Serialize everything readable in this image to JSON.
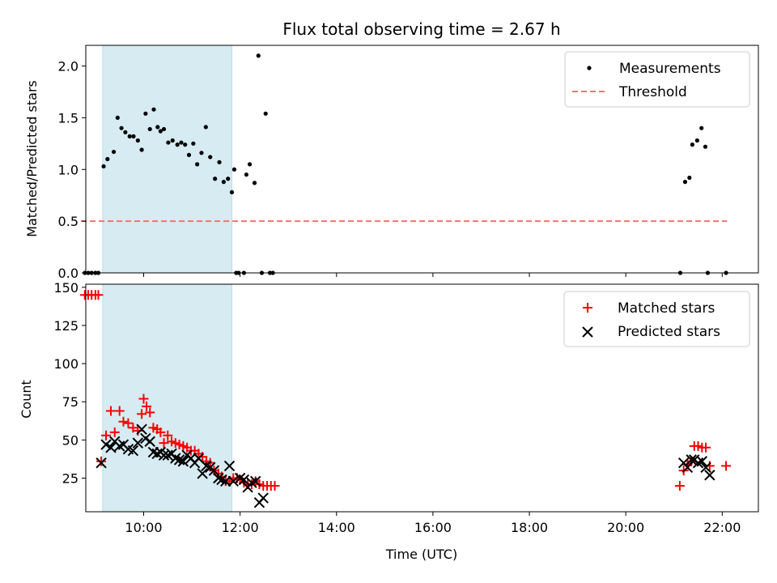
{
  "chart_data": [
    {
      "type": "scatter",
      "title": "Flux total observing time = 2.67 h",
      "ylabel": "Matched/Predicted stars",
      "ylim": [
        0,
        2.2
      ],
      "yticks": [
        "0.0",
        "0.5",
        "1.0",
        "1.5",
        "2.0"
      ],
      "xlim_hours": [
        8.8,
        22.75
      ],
      "shaded_interval_hours": [
        9.15,
        11.83
      ],
      "legend_position": "upper right",
      "series": [
        {
          "name": "Measurements",
          "marker": "dot",
          "color": "#000000",
          "x": [
            8.78,
            8.85,
            8.92,
            9.0,
            9.06,
            9.17,
            9.25,
            9.38,
            9.46,
            9.54,
            9.62,
            9.71,
            9.79,
            9.88,
            9.96,
            10.04,
            10.13,
            10.21,
            10.29,
            10.35,
            10.42,
            10.51,
            10.6,
            10.7,
            10.78,
            10.86,
            10.94,
            11.03,
            11.11,
            11.2,
            11.29,
            11.38,
            11.48,
            11.57,
            11.66,
            11.75,
            11.83,
            11.88,
            11.92,
            11.97,
            12.08,
            12.13,
            12.2,
            12.3,
            12.38,
            12.45,
            12.53,
            12.62,
            12.68,
            21.13,
            21.23,
            21.32,
            21.38,
            21.48,
            21.57,
            21.65,
            21.7,
            22.08
          ],
          "y": [
            0,
            0,
            0,
            0,
            0,
            1.03,
            1.1,
            1.17,
            1.5,
            1.4,
            1.36,
            1.32,
            1.32,
            1.28,
            1.19,
            1.54,
            1.39,
            1.58,
            1.41,
            1.37,
            1.39,
            1.26,
            1.28,
            1.24,
            1.26,
            1.24,
            1.14,
            1.25,
            1.05,
            1.16,
            1.41,
            1.12,
            0.91,
            1.07,
            0.88,
            0.91,
            0.78,
            1.0,
            0,
            0,
            0,
            0.95,
            1.05,
            0.87,
            2.1,
            0,
            1.54,
            0,
            0,
            0,
            0.88,
            0.92,
            1.24,
            1.28,
            1.4,
            1.22,
            0,
            0
          ]
        },
        {
          "name": "Threshold",
          "marker": "dashed-line",
          "color": "#ff7070",
          "x": [
            8.7,
            22.1
          ],
          "y": [
            0.5,
            0.5
          ]
        }
      ]
    },
    {
      "type": "scatter",
      "title": "",
      "xlabel": "Time (UTC)",
      "ylabel": "Count",
      "ylim": [
        3,
        152
      ],
      "yticks": [
        "25",
        "50",
        "75",
        "100",
        "125",
        "150"
      ],
      "xticks": [
        "10:00",
        "12:00",
        "14:00",
        "16:00",
        "18:00",
        "20:00",
        "22:00"
      ],
      "xlim_hours": [
        8.8,
        22.75
      ],
      "shaded_interval_hours": [
        9.15,
        11.83
      ],
      "legend_position": "upper right",
      "series": [
        {
          "name": "Matched stars",
          "marker": "plus",
          "color": "#ff0000",
          "x": [
            8.78,
            8.85,
            8.92,
            9.0,
            9.06,
            9.12,
            9.22,
            9.32,
            9.4,
            9.5,
            9.58,
            9.68,
            9.78,
            9.88,
            9.96,
            10.0,
            10.06,
            10.13,
            10.2,
            10.28,
            10.35,
            10.42,
            10.5,
            10.58,
            10.66,
            10.74,
            10.82,
            10.9,
            10.98,
            11.06,
            11.14,
            11.22,
            11.3,
            11.38,
            11.46,
            11.55,
            11.62,
            11.7,
            11.78,
            11.86,
            11.94,
            12.0,
            12.08,
            12.16,
            12.24,
            12.32,
            12.4,
            12.48,
            12.56,
            12.64,
            12.72,
            21.12,
            21.2,
            21.28,
            21.36,
            21.42,
            21.5,
            21.58,
            21.66,
            21.74,
            22.08
          ],
          "y": [
            145,
            145,
            145,
            145,
            145,
            36,
            53,
            69,
            55,
            69,
            62,
            61,
            58,
            56,
            67,
            77,
            72,
            68,
            58,
            57,
            55,
            48,
            53,
            49,
            48,
            47,
            46,
            45,
            43,
            43,
            41,
            39,
            36,
            35,
            30,
            28,
            26,
            23,
            23,
            25,
            25,
            24,
            22,
            21,
            21,
            23,
            21,
            20,
            20,
            20,
            20,
            20,
            30,
            34,
            36,
            46,
            46,
            45,
            45,
            33,
            33
          ]
        },
        {
          "name": "Predicted stars",
          "marker": "x",
          "color": "#000000",
          "x": [
            9.12,
            9.22,
            9.32,
            9.4,
            9.5,
            9.58,
            9.68,
            9.78,
            9.88,
            9.96,
            10.04,
            10.13,
            10.2,
            10.28,
            10.35,
            10.42,
            10.5,
            10.58,
            10.66,
            10.74,
            10.82,
            10.9,
            10.98,
            11.06,
            11.14,
            11.22,
            11.3,
            11.38,
            11.46,
            11.55,
            11.62,
            11.7,
            11.78,
            11.86,
            12.0,
            12.08,
            12.16,
            12.24,
            12.32,
            12.4,
            12.48,
            21.2,
            21.28,
            21.36,
            21.42,
            21.5,
            21.58,
            21.66,
            21.74
          ],
          "y": [
            35,
            47,
            45,
            49,
            46,
            47,
            44,
            43,
            48,
            57,
            51,
            49,
            42,
            41,
            42,
            40,
            40,
            41,
            38,
            37,
            36,
            40,
            38,
            35,
            38,
            28,
            33,
            32,
            30,
            25,
            24,
            23,
            33,
            23,
            25,
            24,
            19,
            22,
            23,
            9,
            12,
            35,
            32,
            37,
            37,
            35,
            36,
            32,
            27
          ]
        }
      ]
    }
  ]
}
